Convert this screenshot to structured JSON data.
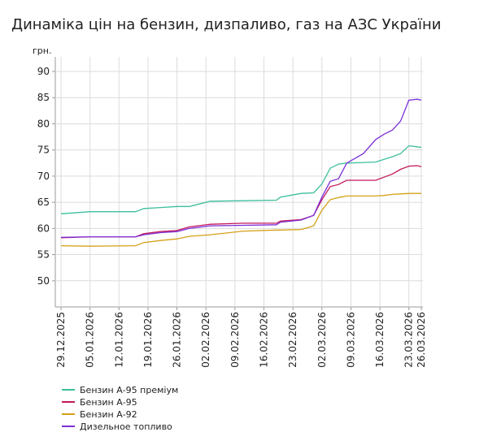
{
  "chart_data": {
    "type": "line",
    "title": "Динаміка цін на бензин, дизпаливо, газ на АЗС України",
    "y_label": "грн.",
    "x": [
      "29.12.2025",
      "05.01.2026",
      "16.01.2026",
      "18.01.2026",
      "22.01.2026",
      "26.01.2026",
      "29.01.2026",
      "03.02.2026",
      "11.02.2026",
      "19.02.2026",
      "20.02.2026",
      "25.02.2026",
      "28.02.2026",
      "02.03.2026",
      "04.03.2026",
      "06.03.2026",
      "08.03.2026",
      "12.03.2026",
      "15.03.2026",
      "17.03.2026",
      "19.03.2026",
      "21.03.2026",
      "23.03.2026",
      "25.03.2026",
      "26.03.2026"
    ],
    "series": [
      {
        "name": "Бензин А-95 преміум",
        "color": "#3cbf9d",
        "values": [
          62.8,
          63.2,
          63.2,
          63.8,
          64.0,
          64.2,
          64.2,
          65.2,
          65.3,
          65.4,
          66.0,
          66.7,
          66.8,
          68.5,
          71.5,
          72.3,
          72.5,
          72.6,
          72.7,
          73.2,
          73.7,
          74.3,
          75.8,
          75.6,
          75.5
        ]
      },
      {
        "name": "Бензин А-95",
        "color": "#c2185b",
        "values": [
          58.2,
          58.4,
          58.4,
          59.0,
          59.4,
          59.6,
          60.3,
          60.8,
          61.0,
          61.0,
          61.4,
          61.7,
          62.5,
          65.5,
          68.0,
          68.4,
          69.2,
          69.2,
          69.2,
          69.8,
          70.4,
          71.3,
          71.9,
          72.0,
          71.8
        ]
      },
      {
        "name": "Бензин А-92",
        "color": "#d4a017",
        "values": [
          56.7,
          56.6,
          56.7,
          57.3,
          57.7,
          58.0,
          58.5,
          58.8,
          59.5,
          59.7,
          59.7,
          59.8,
          60.5,
          63.5,
          65.5,
          65.9,
          66.2,
          66.2,
          66.2,
          66.3,
          66.5,
          66.6,
          66.7,
          66.7,
          66.7
        ]
      },
      {
        "name": "Дизельное топливо",
        "color": "#7b2fd9",
        "values": [
          58.3,
          58.4,
          58.4,
          58.8,
          59.2,
          59.4,
          60.0,
          60.5,
          60.6,
          60.7,
          61.2,
          61.6,
          62.5,
          66.0,
          69.0,
          69.5,
          72.5,
          74.3,
          77.0,
          78.0,
          78.8,
          80.5,
          84.5,
          84.7,
          84.5
        ]
      }
    ],
    "xlim": [
      "29.12.2025",
      "26.03.2026"
    ],
    "xticks": [
      "29.12.2025",
      "05.01.2026",
      "12.01.2026",
      "19.01.2026",
      "26.01.2026",
      "02.02.2026",
      "09.02.2026",
      "16.02.2026",
      "23.02.2026",
      "02.03.2026",
      "09.03.2026",
      "16.03.2026",
      "23.03.2026",
      "26.03.2026"
    ],
    "ylim": [
      45,
      90
    ],
    "yticks": [
      50,
      55,
      60,
      65,
      70,
      75,
      80,
      85,
      90
    ],
    "grid": true
  }
}
